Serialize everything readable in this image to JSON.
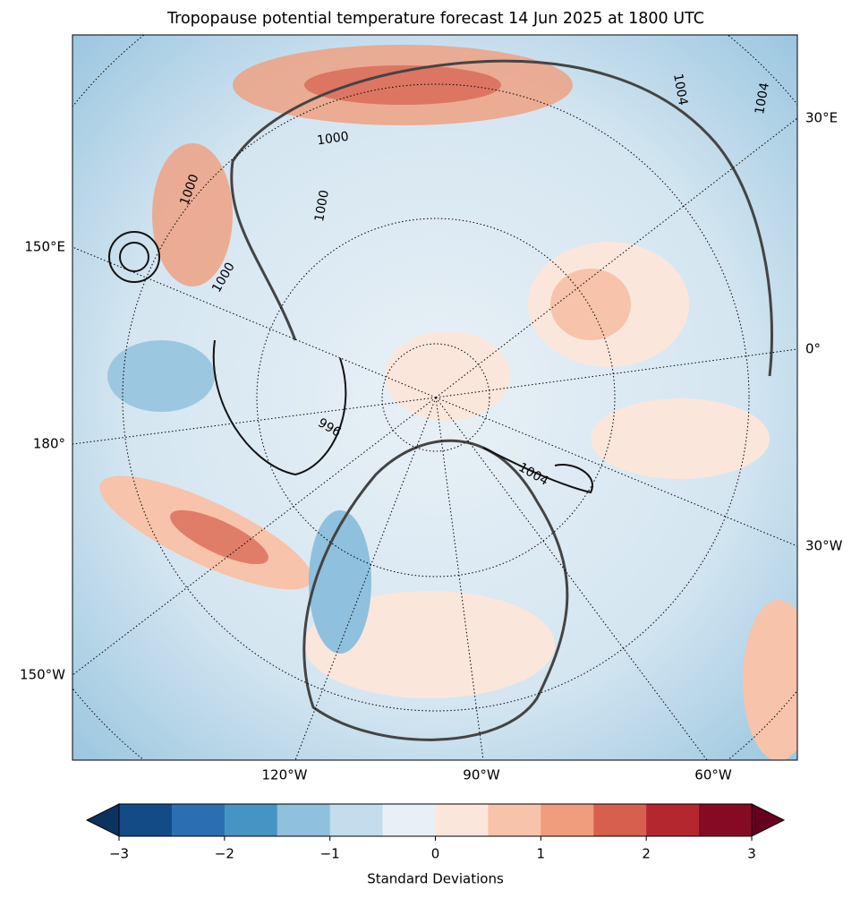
{
  "title": "Tropopause potential temperature forecast 14 Jun 2025 at 1800 UTC",
  "map": {
    "lon_labels": [
      "30°E",
      "150°E",
      "0°",
      "180°",
      "30°W",
      "150°W",
      "120°W",
      "90°W",
      "60°W"
    ],
    "contour_labels": [
      "1000",
      "1000",
      "1000",
      "1000",
      "996",
      "1004",
      "1004",
      "1004"
    ]
  },
  "colorbar": {
    "label": "Standard Deviations",
    "range": [
      -3,
      3
    ],
    "ticks": [
      {
        "value": -3,
        "label": "−3"
      },
      {
        "value": -2,
        "label": "−2"
      },
      {
        "value": -1,
        "label": "−1"
      },
      0,
      1,
      2,
      3
    ],
    "colors": [
      "#134b87",
      "#2b6fb2",
      "#4694c4",
      "#8fc0dd",
      "#c3dded",
      "#e8f0f6",
      "#fbe6dc",
      "#f7c3aa",
      "#f09d7c",
      "#d6604d",
      "#b4272f",
      "#870a24"
    ],
    "under_color": "#0b3360",
    "over_color": "#67001f"
  }
}
